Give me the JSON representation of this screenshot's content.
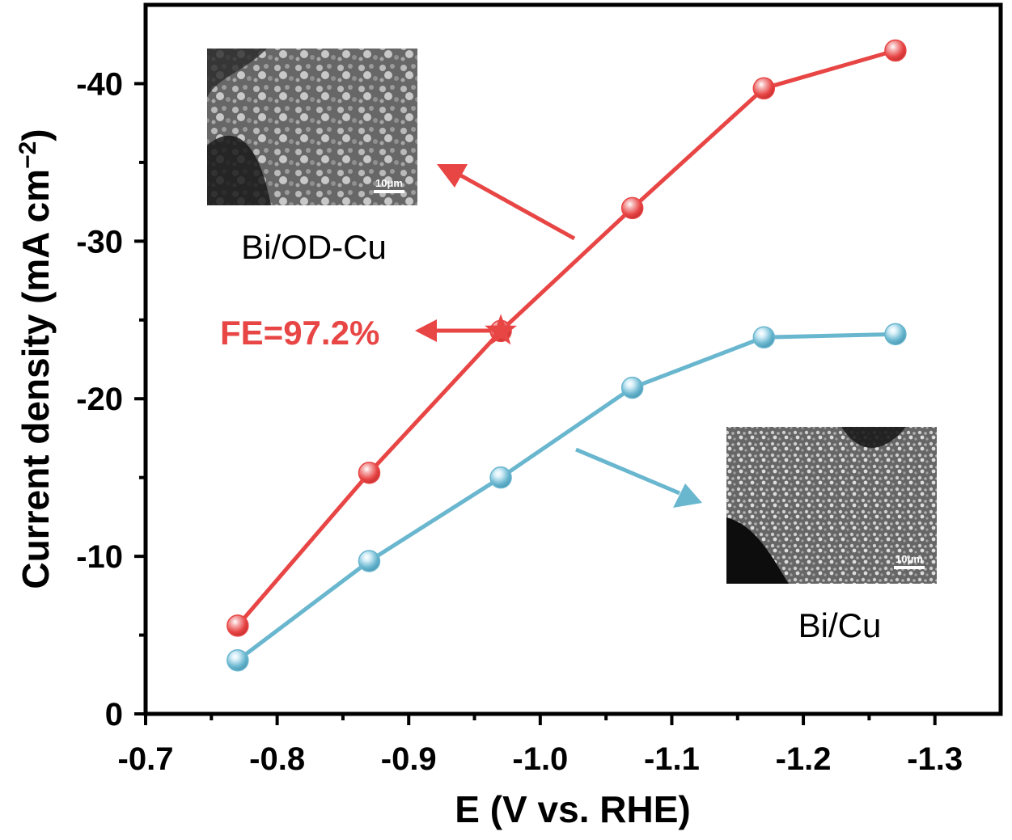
{
  "chart_data": {
    "type": "line",
    "xlabel": "E (V vs. RHE)",
    "ylabel_main": "Current density (mA cm",
    "ylabel_sup": "−2",
    "ylabel_close": ")",
    "xlim": [
      -0.7,
      -1.35
    ],
    "ylim": [
      0,
      -45
    ],
    "x_ticks": [
      -0.7,
      -0.8,
      -0.9,
      -1.0,
      -1.1,
      -1.2,
      -1.3
    ],
    "x_tick_labels": [
      "-0.7",
      "-0.8",
      "-0.9",
      "-1.0",
      "-1.1",
      "-1.2",
      "-1.3"
    ],
    "y_ticks": [
      0,
      -10,
      -20,
      -30,
      -40
    ],
    "y_tick_labels": [
      "0",
      "-10",
      "-20",
      "-30",
      "-40"
    ],
    "x": [
      -0.77,
      -0.87,
      -0.97,
      -1.07,
      -1.17,
      -1.27
    ],
    "series": [
      {
        "key": "bi_od_cu",
        "color": "#e84545",
        "highlight": "#f7b0b0",
        "values": [
          -5.6,
          -15.3,
          -24.3,
          -32.1,
          -39.7,
          -42.1
        ]
      },
      {
        "key": "bi_cu",
        "color": "#69b6cf",
        "highlight": "#d4eef7",
        "values": [
          -3.4,
          -9.7,
          -15.0,
          -20.7,
          -23.9,
          -24.1
        ]
      }
    ],
    "star": {
      "x": -0.97,
      "y": -24.3,
      "color": "#e84545"
    },
    "annotations": {
      "fe_text": "FE=97.2%",
      "fe_color": "#e84545",
      "inset_top_label": "Bi/OD-Cu",
      "inset_bottom_label": "Bi/Cu",
      "scale_bar_text": "10μm"
    }
  }
}
